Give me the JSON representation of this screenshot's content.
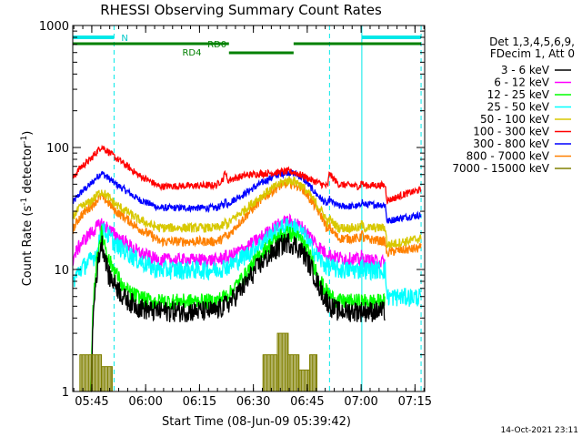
{
  "chart_data": {
    "type": "line",
    "title": "RHESSI Observing Summary Count Rates",
    "xlabel": "Start Time (08-Jun-09 05:39:42)",
    "ylabel": "Count Rate (s",
    "ylabel_sup1": "-1",
    "ylabel_mid": " detector",
    "ylabel_sup2": "-1",
    "ylabel_end": ")",
    "x_unit": "minutes since 05:39:42",
    "xlim": [
      0,
      98
    ],
    "ylim": [
      1,
      1000
    ],
    "yscale": "log",
    "x_ticks": [
      {
        "t": 5.3,
        "label": "05:45"
      },
      {
        "t": 20.3,
        "label": "06:00"
      },
      {
        "t": 35.3,
        "label": "06:15"
      },
      {
        "t": 50.3,
        "label": "06:30"
      },
      {
        "t": 65.3,
        "label": "06:45"
      },
      {
        "t": 80.3,
        "label": "07:00"
      },
      {
        "t": 95.3,
        "label": "07:15"
      }
    ],
    "y_ticks": [
      {
        "v": 1,
        "label": "1"
      },
      {
        "v": 10,
        "label": "10"
      },
      {
        "v": 100,
        "label": "100"
      },
      {
        "v": 1000,
        "label": "1000"
      }
    ],
    "legend": {
      "position": "right",
      "header": [
        "Det 1,3,4,5,6,9,",
        "FDecim 1, Att 0"
      ],
      "entries": [
        {
          "label": "3 - 6 keV",
          "color": "#000000"
        },
        {
          "label": "6 - 12 keV",
          "color": "#ff00ff"
        },
        {
          "label": "12 - 25 keV",
          "color": "#00ff00"
        },
        {
          "label": "25 - 50 keV",
          "color": "#00ffff"
        },
        {
          "label": "50 - 100 keV",
          "color": "#d8c800"
        },
        {
          "label": "100 - 300 keV",
          "color": "#ff0000"
        },
        {
          "label": "300 - 800 keV",
          "color": "#0000ff"
        },
        {
          "label": "800 - 7000 keV",
          "color": "#ff8000"
        },
        {
          "label": "7000 - 15000 keV",
          "color": "#808000"
        }
      ]
    },
    "annotations": {
      "N": "N",
      "RD0": "RD0",
      "RD4": "RD4",
      "night_boundaries": [
        0,
        11.5,
        71.5,
        80.5,
        97
      ],
      "night_bars": [
        [
          0,
          11.5
        ],
        [
          80.5,
          97
        ]
      ],
      "rd0_bars": [
        [
          0,
          43.5
        ],
        [
          61.5,
          97
        ]
      ],
      "rd4_bars": [
        [
          43.5,
          61.5
        ]
      ]
    },
    "series": [
      {
        "name": "300 - 800 keV",
        "color": "#0000ff",
        "noise": 0.03,
        "x": [
          0,
          2,
          5,
          8,
          12,
          18,
          22,
          24,
          40,
          42,
          42.5,
          43,
          44,
          48,
          52,
          56,
          58,
          60,
          62,
          64,
          66,
          68,
          70,
          71,
          71.5,
          72,
          74,
          80,
          80.5,
          81,
          87,
          87.5,
          88,
          90,
          93,
          97
        ],
        "y": [
          35,
          42,
          50,
          62,
          50,
          38,
          34,
          32,
          32,
          34,
          37,
          34,
          36,
          42,
          50,
          58,
          61,
          63,
          61,
          56,
          48,
          41,
          36,
          34,
          38,
          36,
          33,
          33,
          37,
          34,
          34,
          25,
          25,
          26,
          27,
          28
        ]
      },
      {
        "name": "100 - 300 keV",
        "color": "#ff0000",
        "noise": 0.03,
        "x": [
          0,
          2,
          5,
          8,
          12,
          18,
          22,
          24,
          40,
          42,
          42.5,
          43,
          44,
          48,
          52,
          56,
          58,
          60,
          62,
          64,
          66,
          68,
          70,
          71,
          71.5,
          72,
          74,
          80,
          80.5,
          81,
          87,
          87.5,
          88,
          90,
          93,
          97
        ],
        "y": [
          55,
          68,
          80,
          102,
          82,
          60,
          52,
          48,
          49,
          56,
          65,
          53,
          55,
          59,
          61,
          62,
          63,
          64,
          62,
          59,
          55,
          52,
          49,
          48,
          63,
          58,
          50,
          48,
          53,
          49,
          49,
          37,
          37,
          39,
          42,
          45
        ]
      },
      {
        "name": "800 - 7000 keV",
        "color": "#ff8000",
        "noise": 0.04,
        "x": [
          0,
          2,
          5,
          8,
          12,
          18,
          22,
          24,
          40,
          42,
          42.5,
          43,
          44,
          48,
          52,
          56,
          58,
          60,
          62,
          64,
          66,
          68,
          70,
          71,
          71.5,
          72,
          74,
          80,
          80.5,
          81,
          87,
          87.5,
          88,
          97
        ],
        "y": [
          21,
          27,
          33,
          40,
          30,
          22,
          19,
          17,
          17,
          18,
          20,
          18,
          20,
          27,
          36,
          45,
          49,
          51,
          50,
          46,
          38,
          31,
          25,
          20,
          23,
          21,
          18,
          18,
          20,
          18,
          17,
          13,
          14,
          15
        ]
      },
      {
        "name": "50 - 100 keV",
        "color": "#d8c800",
        "noise": 0.04,
        "x": [
          0,
          2,
          5,
          8,
          12,
          18,
          22,
          24,
          40,
          42,
          42.5,
          43,
          44,
          48,
          52,
          56,
          58,
          60,
          62,
          64,
          66,
          68,
          70,
          71,
          71.5,
          72,
          74,
          80,
          80.5,
          81,
          87,
          87.5,
          88,
          97
        ],
        "y": [
          27,
          32,
          36,
          44,
          34,
          26,
          23,
          22,
          22,
          23,
          25,
          23,
          25,
          31,
          39,
          47,
          51,
          54,
          53,
          48,
          41,
          34,
          28,
          24,
          26,
          25,
          22,
          22,
          24,
          22,
          22,
          16,
          16,
          18
        ]
      },
      {
        "name": "6 - 12 keV",
        "color": "#ff00ff",
        "noise": 0.06,
        "x": [
          0,
          2,
          5,
          8,
          12,
          18,
          22,
          24,
          40,
          42,
          42.5,
          43,
          44,
          48,
          52,
          56,
          58,
          60,
          62,
          64,
          66,
          68,
          70,
          72,
          74,
          80,
          80.5,
          81,
          87
        ],
        "y": [
          12,
          16,
          20,
          24,
          19,
          14,
          12.5,
          12,
          12,
          12.5,
          13,
          12.5,
          13,
          15,
          18,
          22,
          24,
          25,
          24,
          22,
          19,
          16,
          14,
          13,
          12.5,
          12,
          13,
          12,
          11.5
        ]
      },
      {
        "name": "25 - 50 keV",
        "color": "#00ffff",
        "noise": 0.08,
        "x": [
          0,
          2,
          5,
          7,
          8,
          12,
          18,
          22,
          24,
          40,
          42,
          42.5,
          43,
          44,
          48,
          52,
          56,
          58,
          60,
          62,
          64,
          66,
          68,
          70,
          72,
          74,
          80,
          80.5,
          81,
          87,
          87.5,
          88,
          97
        ],
        "y": [
          8,
          10,
          12,
          14,
          22,
          16,
          12,
          10.5,
          10,
          10,
          10.5,
          11,
          10.5,
          11,
          13,
          16,
          20,
          22,
          23,
          22,
          20,
          16,
          13,
          11,
          10.5,
          10,
          10,
          11,
          10,
          10,
          6,
          6,
          6
        ]
      },
      {
        "name": "12 - 25 keV",
        "color": "#00ff00",
        "noise": 0.07,
        "x": [
          0,
          5,
          7,
          8,
          10,
          14,
          18,
          22,
          24,
          40,
          44,
          48,
          52,
          56,
          58,
          60,
          62,
          64,
          66,
          68,
          70,
          72,
          74,
          80,
          87
        ],
        "y": [
          0,
          0,
          14,
          20,
          12,
          7,
          6,
          5.5,
          5.5,
          5.5,
          6.5,
          9,
          13,
          17,
          19,
          20,
          19,
          17,
          13,
          9.5,
          7,
          6,
          5.5,
          5.5,
          5.5
        ]
      },
      {
        "name": "3 - 6 keV",
        "color": "#000000",
        "noise": 0.09,
        "x": [
          0,
          5,
          7,
          8,
          10,
          14,
          18,
          22,
          24,
          40,
          44,
          48,
          52,
          56,
          58,
          60,
          62,
          64,
          66,
          68,
          70,
          72,
          74,
          80,
          87
        ],
        "y": [
          0,
          0,
          11,
          17,
          9,
          6,
          5,
          4.6,
          4.6,
          4.6,
          5.5,
          7.5,
          11,
          14,
          16,
          17,
          16,
          14,
          11,
          8,
          6,
          5,
          4.6,
          4.6,
          4.6
        ]
      },
      {
        "name": "7000 - 15000 keV",
        "color": "#808000",
        "noise": 0,
        "blocks": [
          [
            2.0,
            8.0,
            2.0
          ],
          [
            8.0,
            11.0,
            1.6
          ],
          [
            53.0,
            57.0,
            2.0
          ],
          [
            57.0,
            60.0,
            3.0
          ],
          [
            60.0,
            63.0,
            2.0
          ],
          [
            63.0,
            66.0,
            1.5
          ],
          [
            66.0,
            68.0,
            2.0
          ]
        ]
      }
    ]
  },
  "footer": {
    "timestamp": "14-Oct-2021 23:11"
  }
}
